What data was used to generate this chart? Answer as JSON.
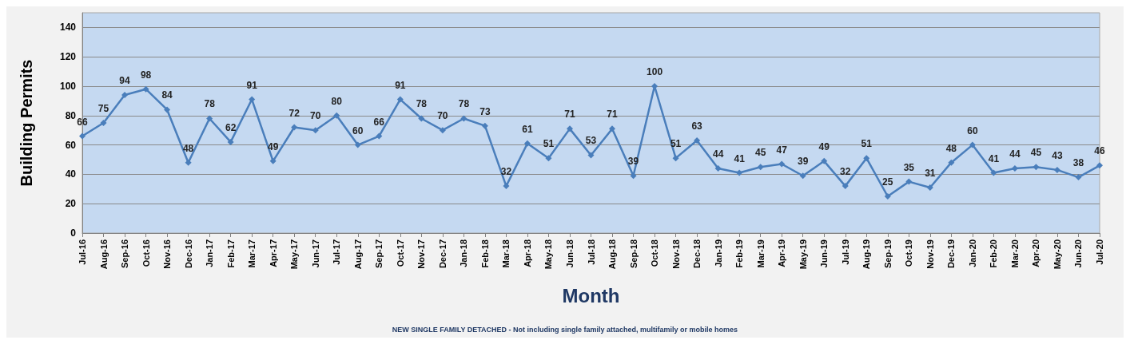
{
  "chart_data": {
    "type": "line",
    "xlabel": "Month",
    "ylabel": "Building Permits",
    "annotations": [
      "NEW SINGLE FAMILY DETACHED - Not including single family attached, multifamily or mobile homes"
    ],
    "categories": [
      "Jul-16",
      "Aug-16",
      "Sep-16",
      "Oct-16",
      "Nov-16",
      "Dec-16",
      "Jan-17",
      "Feb-17",
      "Mar-17",
      "Apr-17",
      "May-17",
      "Jun-17",
      "Jul-17",
      "Aug-17",
      "Sep-17",
      "Oct-17",
      "Nov-17",
      "Dec-17",
      "Jan-18",
      "Feb-18",
      "Mar-18",
      "Apr-18",
      "May-18",
      "Jun-18",
      "Jul-18",
      "Aug-18",
      "Sep-18",
      "Oct-18",
      "Nov-18",
      "Dec-18",
      "Jan-19",
      "Feb-19",
      "Mar-19",
      "Apr-19",
      "May-19",
      "Jun-19",
      "Jul-19",
      "Aug-19",
      "Sep-19",
      "Oct-19",
      "Nov-19",
      "Dec-19",
      "Jan-20",
      "Feb-20",
      "Mar-20",
      "Apr-20",
      "May-20",
      "Jun-20",
      "Jul-20"
    ],
    "series": [
      {
        "color": "#4a7ebb",
        "values": [
          66,
          75,
          94,
          98,
          84,
          48,
          78,
          62,
          91,
          49,
          72,
          70,
          80,
          60,
          66,
          91,
          78,
          70,
          78,
          73,
          32,
          61,
          51,
          71,
          53,
          71,
          39,
          100,
          51,
          63,
          44,
          41,
          45,
          47,
          39,
          49,
          32,
          51,
          25,
          35,
          31,
          48,
          60,
          41,
          44,
          45,
          43,
          38,
          46
        ]
      }
    ],
    "ylim": [
      0,
      150
    ],
    "yticks": [
      0,
      20,
      40,
      60,
      80,
      100,
      120,
      140
    ],
    "grid": "y",
    "marker": "diamond",
    "line_style": "solid",
    "data_labels": true
  }
}
